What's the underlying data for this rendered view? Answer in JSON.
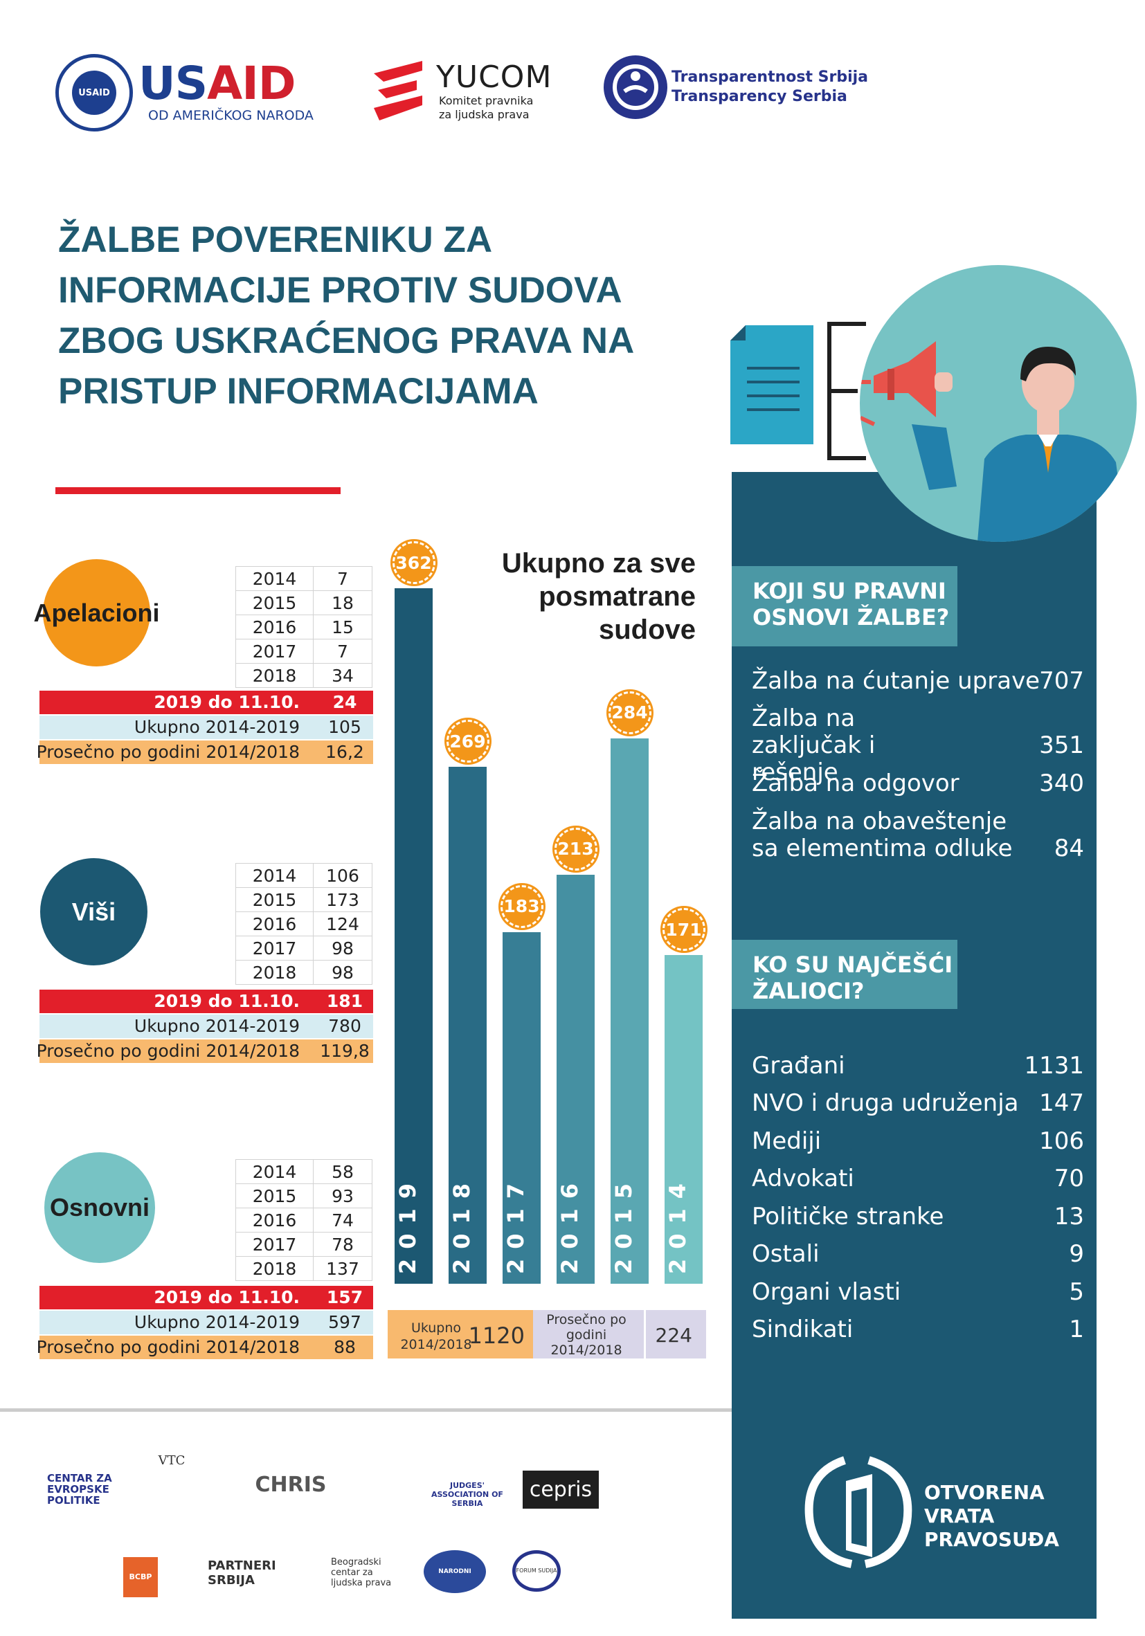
{
  "header": {
    "usaid": {
      "name_blue": "US",
      "name_red": "AID",
      "subtitle": "OD AMERIČKOG NARODA",
      "seal_text": "USAID"
    },
    "yucom": {
      "name": "YUCOM",
      "subtitle": "Komitet pravnika za ljudska prava"
    },
    "transparency": {
      "line1": "Transparentnost Srbija",
      "line2": "Transparency Serbia"
    }
  },
  "title": "ŽALBE POVERENIKU ZA INFORMACIJE PROTIV SUDOVA ZBOG USKRAĆENOG PRAVA NA PRISTUP INFORMACIJAMA",
  "courts": [
    {
      "name": "Apelacioni",
      "rows": [
        [
          "2014",
          "7"
        ],
        [
          "2015",
          "18"
        ],
        [
          "2016",
          "15"
        ],
        [
          "2017",
          "7"
        ],
        [
          "2018",
          "34"
        ]
      ],
      "current_label": "2019 do 11.10.",
      "current_value": "24",
      "total_label": "Ukupno 2014-2019",
      "total_value": "105",
      "avg_label": "Prosečno po godini 2014/2018",
      "avg_value": "16,2"
    },
    {
      "name": "Viši",
      "rows": [
        [
          "2014",
          "106"
        ],
        [
          "2015",
          "173"
        ],
        [
          "2016",
          "124"
        ],
        [
          "2017",
          "98"
        ],
        [
          "2018",
          "98"
        ]
      ],
      "current_label": "2019 do 11.10.",
      "current_value": "181",
      "total_label": "Ukupno 2014-2019",
      "total_value": "780",
      "avg_label": "Prosečno po godini 2014/2018",
      "avg_value": "119,8"
    },
    {
      "name": "Osnovni",
      "rows": [
        [
          "2014",
          "58"
        ],
        [
          "2015",
          "93"
        ],
        [
          "2016",
          "74"
        ],
        [
          "2017",
          "78"
        ],
        [
          "2018",
          "137"
        ]
      ],
      "current_label": "2019 do 11.10.",
      "current_value": "157",
      "total_label": "Ukupno 2014-2019",
      "total_value": "597",
      "avg_label": "Prosečno po godini 2014/2018",
      "avg_value": "88"
    }
  ],
  "chart_data": {
    "type": "bar",
    "title": "Ukupno za sve posmatrane sudove",
    "categories": [
      "2019",
      "2018",
      "2017",
      "2016",
      "2015",
      "2014"
    ],
    "values": [
      362,
      269,
      183,
      213,
      284,
      171
    ],
    "value_labels": [
      "362",
      "269",
      "183",
      "213",
      "284",
      "171"
    ],
    "colors": [
      "#1c5872",
      "#296b85",
      "#377e95",
      "#4590a2",
      "#5aa7b2",
      "#74c3c4"
    ],
    "ylim": [
      0,
      362
    ]
  },
  "totals": {
    "total_label": "Ukupno 2014/2018",
    "total_value": "1120",
    "avg_label": "Prosečno po godini 2014/2018",
    "avg_value": "224"
  },
  "legal_grounds": {
    "heading": "KOJI SU PRAVNI OSNOVI ŽALBE?",
    "items": [
      {
        "label": "Žalba na ćutanje uprave",
        "value": "707"
      },
      {
        "label": "Žalba na zaključak i rešenje",
        "value": "351"
      },
      {
        "label": "Žalba na odgovor",
        "value": "340"
      },
      {
        "label": "Žalba na obaveštenje sa elementima odluke",
        "value": "84"
      }
    ]
  },
  "complainants": {
    "heading": "KO SU NAJČEŠĆI ŽALIOCI?",
    "items": [
      {
        "label": "Građani",
        "value": "1131"
      },
      {
        "label": "NVO i druga udruženja",
        "value": "147"
      },
      {
        "label": "Mediji",
        "value": "106"
      },
      {
        "label": "Advokati",
        "value": "70"
      },
      {
        "label": "Političke stranke",
        "value": "13"
      },
      {
        "label": "Ostali",
        "value": "9"
      },
      {
        "label": "Organi vlasti",
        "value": "5"
      },
      {
        "label": "Sindikati",
        "value": "1"
      }
    ]
  },
  "footer": {
    "partners": [
      "CENTAR ZA EVROPSKE POLITIKE",
      "VTC",
      "CHRIS",
      "JUDGES' ASSOCIATION OF SERBIA",
      "cepris",
      "BCBP",
      "PARTNERI SRBIJA",
      "Beogradski centar za ljudska prava",
      "NARODNI PARLAMENT",
      "FORUM SUDIJA"
    ],
    "program": "OTVORENA VRATA PRAVOSUĐA"
  }
}
